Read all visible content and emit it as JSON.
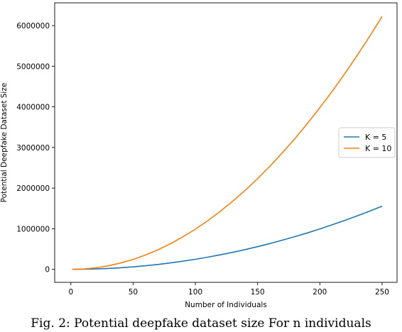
{
  "chart_data": {
    "type": "line",
    "title": "",
    "xlabel": "Number of Individuals",
    "ylabel": "Potential Deepfake Dataset Size",
    "xlim": [
      -13,
      262
    ],
    "ylim": [
      -320000,
      6560000
    ],
    "x_ticks": [
      0,
      50,
      100,
      150,
      200,
      250
    ],
    "y_ticks": [
      0,
      1000000,
      2000000,
      3000000,
      4000000,
      5000000,
      6000000
    ],
    "grid": false,
    "legend_position": "right",
    "x": [
      1,
      10,
      20,
      30,
      40,
      50,
      60,
      70,
      80,
      90,
      100,
      110,
      120,
      130,
      140,
      150,
      160,
      170,
      180,
      190,
      200,
      210,
      220,
      230,
      240,
      250
    ],
    "series": [
      {
        "name": "K = 5",
        "color": "#1f77b4",
        "values": [
          0,
          2250,
          9500,
          21750,
          39000,
          61250,
          88500,
          120750,
          158000,
          200250,
          247500,
          299750,
          357000,
          419250,
          486500,
          558750,
          636000,
          718250,
          805500,
          897750,
          995000,
          1097250,
          1204500,
          1316750,
          1434000,
          1556250
        ]
      },
      {
        "name": "K = 10",
        "color": "#ff7f0e",
        "values": [
          0,
          9000,
          38000,
          87000,
          156000,
          245000,
          354000,
          483000,
          632000,
          801000,
          990000,
          1199000,
          1428000,
          1677000,
          1946000,
          2235000,
          2544000,
          2873000,
          3222000,
          3591000,
          3980000,
          4389000,
          4818000,
          5267000,
          5736000,
          6225000
        ]
      }
    ]
  },
  "caption": "Fig. 2: Potential deepfake dataset size For n individuals"
}
